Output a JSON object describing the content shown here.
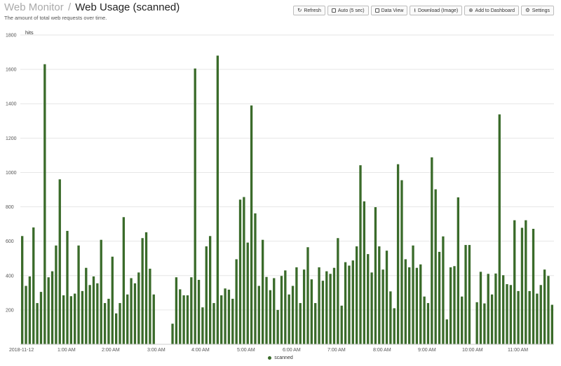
{
  "header": {
    "crumb": "Web Monitor",
    "separator": "/",
    "title": "Web Usage (scanned)",
    "subtitle": "The amount of total web requests over time."
  },
  "toolbar": {
    "refresh": {
      "label": "Refresh",
      "icon": "refresh-icon"
    },
    "auto": {
      "label": "Auto (5 sec)",
      "icon": "checkbox-icon"
    },
    "data_view": {
      "label": "Data View",
      "icon": "checkbox-icon"
    },
    "download": {
      "label": "Download (Image)",
      "icon": "download-icon"
    },
    "add_dashboard": {
      "label": "Add to Dashboard",
      "icon": "plus-icon"
    },
    "settings": {
      "label": "Settings",
      "icon": "gear-icon"
    }
  },
  "chart_data": {
    "type": "bar",
    "ylabel": "hits",
    "ylim": [
      0,
      1800
    ],
    "yticks": [
      200,
      400,
      600,
      800,
      1000,
      1200,
      1400,
      1600,
      1800
    ],
    "xlabels": [
      "2018-11-12",
      "1:00 AM",
      "2:00 AM",
      "3:00 AM",
      "4:00 AM",
      "5:00 AM",
      "6:00 AM",
      "7:00 AM",
      "8:00 AM",
      "9:00 AM",
      "10:00 AM",
      "11:00 AM"
    ],
    "bar_color": "#3a6b2a",
    "grid": true,
    "legend_position": "bottom",
    "series": [
      {
        "name": "scanned",
        "values": [
          630,
          340,
          395,
          680,
          240,
          305,
          1630,
          390,
          425,
          575,
          960,
          285,
          660,
          280,
          295,
          575,
          310,
          445,
          345,
          395,
          355,
          608,
          240,
          265,
          510,
          180,
          240,
          740,
          290,
          385,
          355,
          418,
          618,
          652,
          440,
          290,
          0,
          0,
          0,
          0,
          120,
          390,
          320,
          285,
          285,
          390,
          1605,
          375,
          215,
          570,
          630,
          240,
          1680,
          285,
          325,
          318,
          265,
          495,
          842,
          857,
          592,
          1390,
          762,
          340,
          608,
          392,
          315,
          385,
          200,
          398,
          430,
          290,
          340,
          448,
          240,
          435,
          565,
          378,
          240,
          448,
          370,
          425,
          410,
          445,
          618,
          225,
          478,
          458,
          488,
          570,
          1042,
          832,
          525,
          418,
          798,
          570,
          435,
          545,
          308,
          210,
          1048,
          955,
          495,
          448,
          575,
          445,
          465,
          278,
          240,
          1088,
          902,
          538,
          628,
          145,
          448,
          455,
          855,
          278,
          578,
          578,
          0,
          245,
          422,
          238,
          410,
          290,
          412,
          1338,
          402,
          350,
          345,
          722,
          310,
          678,
          722,
          310,
          672,
          295,
          345,
          435,
          398,
          230
        ]
      }
    ]
  }
}
